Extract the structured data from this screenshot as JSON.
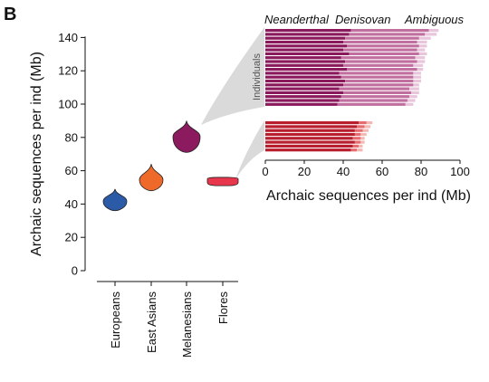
{
  "panel_label": "B",
  "colors": {
    "europeans": "#2b5aa7",
    "east_asians": "#ef6a2a",
    "melanesians": "#8c1a5e",
    "flores": "#e8374c",
    "mel_neanderthal": "#8a1a5c",
    "mel_denisovan": "#c06f9e",
    "mel_ambiguous": "#e8c5db",
    "flo_neanderthal": "#b81e2d",
    "flo_denisovan": "#e56b6f",
    "flo_ambiguous": "#f3b8b4",
    "callout_fill": "#d6d6d6",
    "axis": "#111111"
  },
  "chart_data": [
    {
      "type": "violin",
      "ylabel": "Archaic sequences per ind (Mb)",
      "ylim": [
        0,
        145
      ],
      "yticks": [
        "0",
        "20",
        "40",
        "60",
        "80",
        "100",
        "120",
        "140"
      ],
      "categories": [
        "Europeans",
        "East Asians",
        "Melanesians",
        "Flores"
      ],
      "series": [
        {
          "key": "europeans",
          "values": [
            36,
            40,
            42,
            44,
            46,
            49
          ],
          "median": 42
        },
        {
          "key": "east_asians",
          "values": [
            48,
            52,
            55,
            57,
            60,
            64
          ],
          "median": 55
        },
        {
          "key": "melanesians",
          "values": [
            71,
            76,
            80,
            83,
            86,
            90
          ],
          "median": 81
        },
        {
          "key": "flores",
          "values": [
            51,
            52,
            53,
            54,
            55,
            56
          ],
          "median": 54
        }
      ]
    },
    {
      "type": "bar",
      "orientation": "horizontal",
      "stacked": true,
      "xlabel": "Archaic sequences per ind (Mb)",
      "xlim": [
        0,
        100
      ],
      "xticks": [
        "0",
        "20",
        "40",
        "60",
        "80",
        "100"
      ],
      "row_label": "Individuals",
      "legend": [
        "Neanderthal",
        "Denisovan",
        "Ambiguous"
      ],
      "groups": [
        {
          "key": "melanesians",
          "rows": [
            [
              44,
              40,
              5
            ],
            [
              43,
              39,
              6
            ],
            [
              41,
              38,
              6
            ],
            [
              40,
              38,
              5
            ],
            [
              42,
              37,
              4
            ],
            [
              40,
              38,
              4
            ],
            [
              43,
              36,
              4
            ],
            [
              39,
              38,
              5
            ],
            [
              41,
              37,
              4
            ],
            [
              40,
              36,
              5
            ],
            [
              42,
              36,
              3
            ],
            [
              38,
              38,
              4
            ],
            [
              39,
              37,
              4
            ],
            [
              41,
              35,
              4
            ],
            [
              40,
              36,
              3
            ],
            [
              38,
              36,
              5
            ],
            [
              40,
              35,
              4
            ],
            [
              39,
              35,
              4
            ],
            [
              38,
              35,
              4
            ],
            [
              37,
              35,
              4
            ]
          ]
        },
        {
          "key": "flores",
          "rows": [
            [
              48,
              4,
              3
            ],
            [
              47,
              4,
              3
            ],
            [
              46,
              4,
              3
            ],
            [
              46,
              3,
              3
            ],
            [
              45,
              4,
              2
            ],
            [
              46,
              3,
              2
            ],
            [
              45,
              3,
              2
            ],
            [
              44,
              3,
              3
            ]
          ]
        }
      ]
    }
  ]
}
